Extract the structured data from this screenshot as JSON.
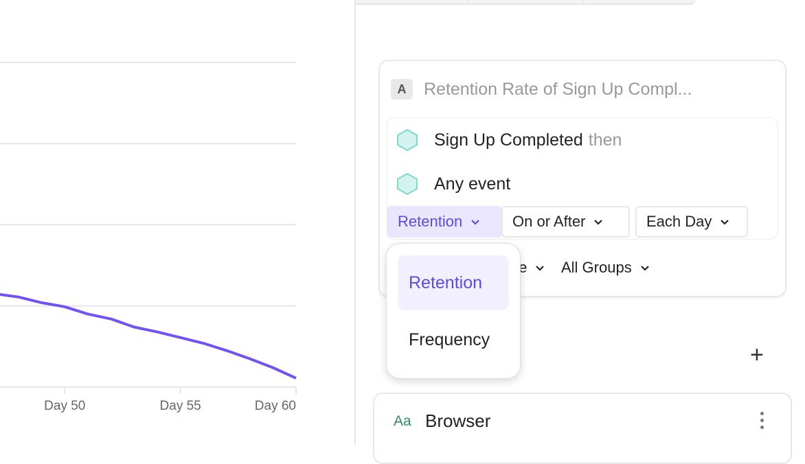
{
  "chart_data": {
    "type": "line",
    "x_ticks": [
      "Day 50",
      "Day 55",
      "Day 60"
    ],
    "x": [
      47,
      48,
      49,
      50,
      51,
      52,
      53,
      54,
      55,
      56,
      57,
      58,
      59,
      60
    ],
    "series": [
      {
        "values": [
          1.15,
          1.11,
          1.04,
          0.99,
          0.9,
          0.84,
          0.74,
          0.68,
          0.61,
          0.54,
          0.45,
          0.35,
          0.24,
          0.11
        ]
      }
    ],
    "xlim": [
      47.2,
      60
    ],
    "ylim": [
      0,
      4
    ],
    "grid": true,
    "color": "#7352f5"
  },
  "panel": {
    "badge": "A",
    "title": "Retention Rate of Sign Up Compl...",
    "events": [
      {
        "name": "Sign Up Completed",
        "suffix": "then"
      },
      {
        "name": "Any event",
        "suffix": ""
      }
    ],
    "event_color": "#7fd9cf",
    "controls": {
      "type": "Retention",
      "criteria": "On or After",
      "interval": "Each Day"
    },
    "row2": {
      "partial": "te",
      "groups": "All Groups"
    }
  },
  "dropdown": {
    "options": [
      "Retention",
      "Frequency"
    ],
    "selected": "Retention"
  },
  "breakdown": {
    "add": "+",
    "icon_label": "Aa",
    "name": "Browser"
  }
}
